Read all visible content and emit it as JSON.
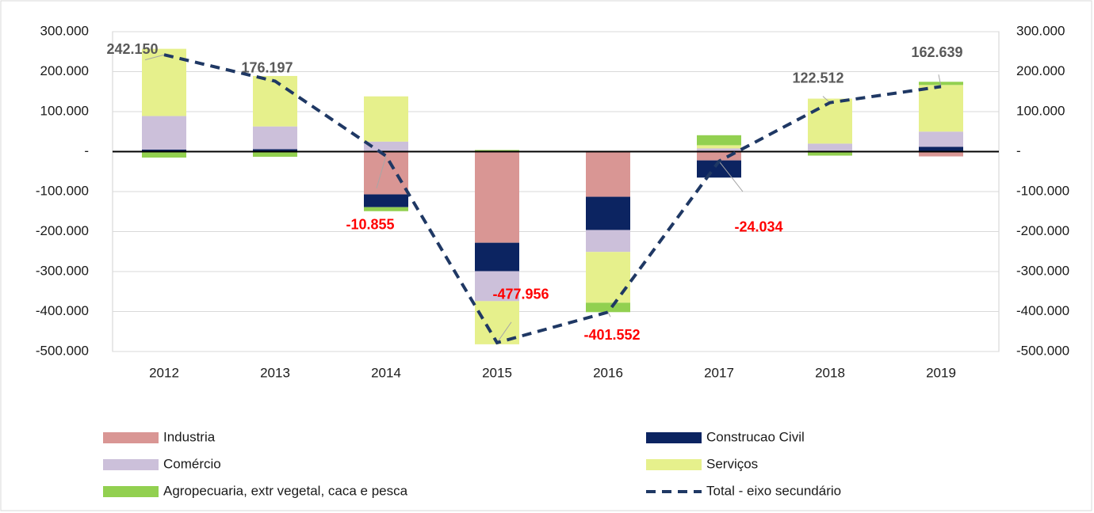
{
  "chart_data": {
    "type": "bar",
    "categories": [
      "2012",
      "2013",
      "2014",
      "2015",
      "2016",
      "2017",
      "2018",
      "2019"
    ],
    "series": [
      {
        "name": "Industria",
        "color": "#d99694",
        "values": [
          -2000,
          0,
          -107000,
          -228000,
          -113000,
          -22000,
          -2000,
          -12000
        ]
      },
      {
        "name": "Construcao Civil",
        "color": "#0c2461",
        "values": [
          5000,
          6000,
          -32000,
          -71000,
          -83000,
          -43000,
          0,
          12000
        ]
      },
      {
        "name": "Comércio",
        "color": "#ccc0da",
        "values": [
          84000,
          57000,
          25000,
          -75000,
          -55000,
          8000,
          20000,
          38000
        ]
      },
      {
        "name": "Serviços",
        "color": "#e6f08c",
        "values": [
          168150,
          126197,
          113145,
          -107956,
          -127000,
          8000,
          112512,
          116639
        ]
      },
      {
        "name": "Agropecuaria, extr vegetal, caca e pesca",
        "color": "#92d050",
        "values": [
          -13000,
          -13000,
          -10000,
          4000,
          -23552,
          24966,
          -8000,
          8000
        ]
      },
      {
        "name": "Total - eixo secundário",
        "color": "#1f3864",
        "type": "line",
        "axis": "y2",
        "dashed": true,
        "values": [
          242150,
          176197,
          -10855,
          -477956,
          -401552,
          -24034,
          122512,
          162639
        ],
        "value_labels": [
          "242.150",
          "176.197",
          "-10.855",
          "-477.956",
          "-401.552",
          "-24.034",
          "122.512",
          "162.639"
        ]
      }
    ],
    "ylim": [
      -500000,
      300000
    ],
    "yticks": [
      {
        "value": -500000,
        "label": "-500.000"
      },
      {
        "value": -400000,
        "label": "-400.000"
      },
      {
        "value": -300000,
        "label": "-300.000"
      },
      {
        "value": -200000,
        "label": "-200.000"
      },
      {
        "value": -100000,
        "label": "-100.000"
      },
      {
        "value": 0,
        "label": "-"
      },
      {
        "value": 100000,
        "label": "100.000"
      },
      {
        "value": 200000,
        "label": "200.000"
      },
      {
        "value": 300000,
        "label": "300.000"
      }
    ],
    "y2lim": [
      -500000,
      300000
    ],
    "y2ticks": [
      {
        "value": -500000,
        "label": "-500.000"
      },
      {
        "value": -400000,
        "label": "-400.000"
      },
      {
        "value": -300000,
        "label": "-300.000"
      },
      {
        "value": -200000,
        "label": "-200.000"
      },
      {
        "value": -100000,
        "label": "-100.000"
      },
      {
        "value": 0,
        "label": "-"
      },
      {
        "value": 100000,
        "label": "100.000"
      },
      {
        "value": 200000,
        "label": "200.000"
      },
      {
        "value": 300000,
        "label": "300.000"
      }
    ],
    "grid": true
  }
}
